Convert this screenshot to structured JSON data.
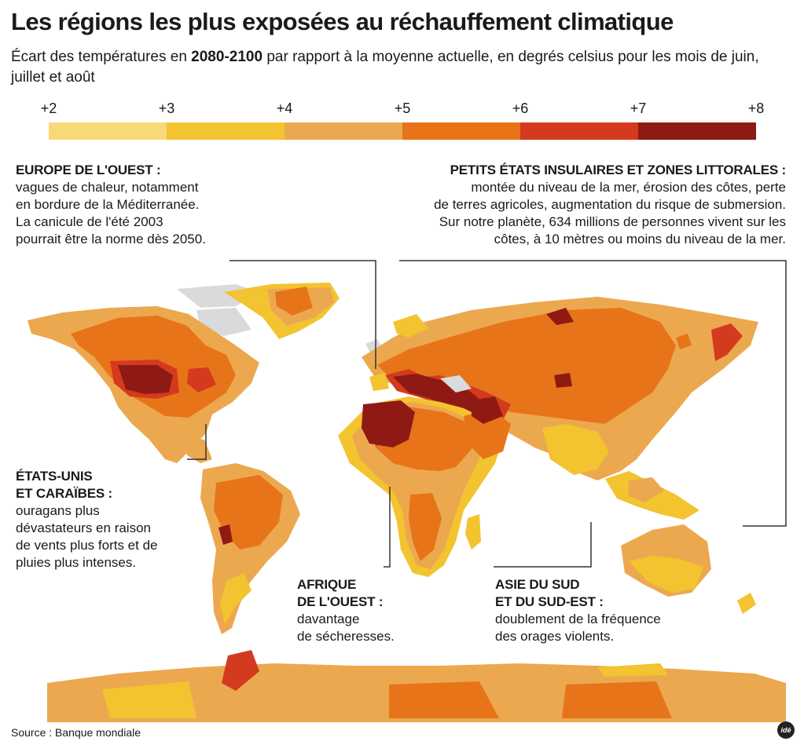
{
  "title": "Les régions les plus exposées au réchauffement climatique",
  "subtitle": {
    "prefix": "Écart des températures en ",
    "bold": "2080-2100",
    "suffix": " par rapport à la moyenne actuelle, en degrés celsius pour les mois de juin, juillet et août"
  },
  "legend": {
    "ticks": [
      "+2",
      "+3",
      "+4",
      "+5",
      "+6",
      "+7",
      "+8"
    ],
    "colors": [
      "#f8d978",
      "#f3c330",
      "#eca84e",
      "#e8741a",
      "#d43a1e",
      "#8f1a14"
    ]
  },
  "map_colors": {
    "ice": "#d8dadc",
    "c3": "#f3c330",
    "c4": "#eca84e",
    "c5": "#e8741a",
    "c6": "#d43a1e",
    "c7": "#8f1a14",
    "leader": "#333333"
  },
  "callouts": {
    "europe": {
      "head": "EUROPE DE L'OUEST :",
      "body": "vagues de chaleur, notamment\nen bordure de la Méditerranée.\nLa canicule de l'été 2003\npourrait être la norme dès 2050."
    },
    "islands": {
      "head": "PETITS ÉTATS INSULAIRES ET ZONES LITTORALES :",
      "body": "montée du niveau de la mer, érosion des côtes, perte\nde terres agricoles, augmentation du risque de submersion.\nSur notre planète, 634 millions de personnes vivent sur les\ncôtes, à 10 mètres ou moins du niveau de la mer."
    },
    "usa": {
      "head": "ÉTATS-UNIS\nET CARAÏBES :",
      "body": "ouragans plus\ndévastateurs en raison\nde vents plus forts et de\npluies plus intenses."
    },
    "africa": {
      "head": "AFRIQUE\nDE L'OUEST :",
      "body": "davantage\nde sécheresses."
    },
    "asia": {
      "head": "ASIE DU SUD\nET DU SUD-EST :",
      "body": "doublement de la fréquence\ndes orages violents."
    }
  },
  "source": "Source : Banque mondiale",
  "brand": "idé"
}
